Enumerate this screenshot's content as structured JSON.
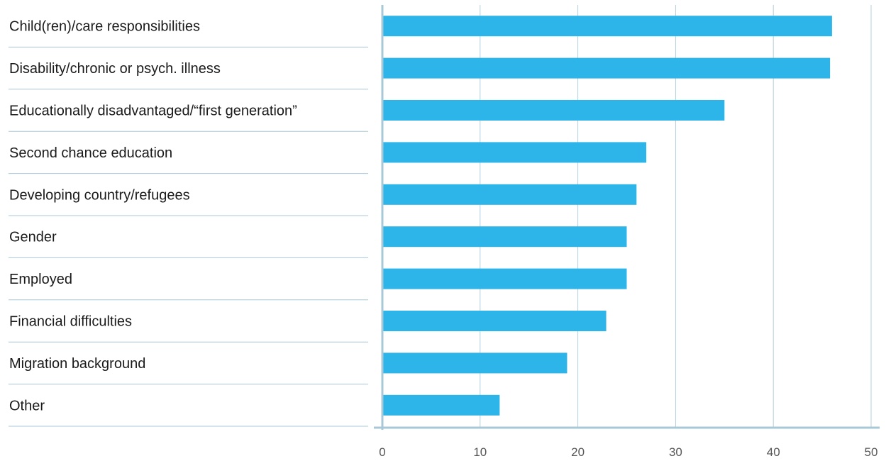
{
  "chart_data": {
    "type": "bar",
    "orientation": "horizontal",
    "categories": [
      "Child(ren)/care responsibilities",
      "Disability/chronic or psych. illness",
      "Educationally disadvantaged/“first generation”",
      "Second chance education",
      "Developing country/refugees",
      "Gender",
      "Employed",
      "Financial difficulties",
      "Migration background",
      "Other"
    ],
    "values": [
      46,
      45.8,
      35,
      27,
      26,
      25,
      25,
      22.9,
      18.9,
      12
    ],
    "xticks": [
      "0",
      "10",
      "20",
      "30",
      "40",
      "50"
    ],
    "xlim": [
      0,
      50
    ],
    "title": "",
    "xlabel": "",
    "ylabel": "",
    "grid": "vertical",
    "legend": "none"
  },
  "colors": {
    "bar": "#2db4e8",
    "grid": "#b4cfdd",
    "axis": "#a8c8d8",
    "separator": "#a8c8d8"
  }
}
